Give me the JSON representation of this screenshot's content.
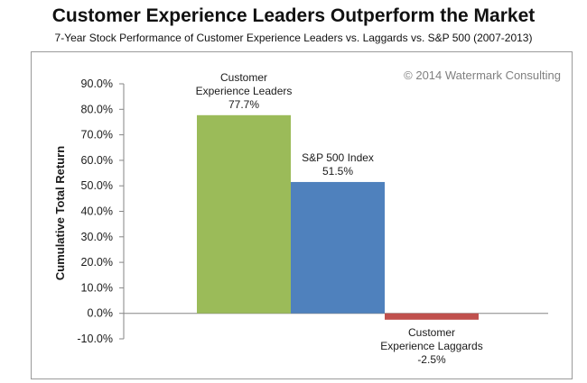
{
  "chart_data": {
    "type": "bar",
    "title": "Customer Experience Leaders Outperform the Market",
    "subtitle": "7-Year Stock Performance of Customer Experience Leaders vs. Laggards vs. S&P 500 (2007-2013)",
    "ylabel": "Cumulative Total Return",
    "xlabel": "",
    "ylim": [
      -10,
      90
    ],
    "yticks": [
      -10,
      0,
      10,
      20,
      30,
      40,
      50,
      60,
      70,
      80,
      90
    ],
    "ytick_labels": [
      "-10.0%",
      "0.0%",
      "10.0%",
      "20.0%",
      "30.0%",
      "40.0%",
      "50.0%",
      "60.0%",
      "70.0%",
      "80.0%",
      "90.0%"
    ],
    "categories": [
      "Customer Experience Leaders",
      "S&P 500 Index",
      "Customer Experience Laggards"
    ],
    "values": [
      77.7,
      51.5,
      -2.5
    ],
    "label_lines": [
      [
        "Customer",
        "Experience Leaders"
      ],
      [
        "S&P 500 Index"
      ],
      [
        "Customer",
        "Experience Laggards"
      ]
    ],
    "value_labels": [
      "77.7%",
      "51.5%",
      "-2.5%"
    ],
    "colors": [
      "#9bbb59",
      "#4f81bd",
      "#c0504d"
    ],
    "grid": false,
    "legend": "none",
    "annotation": "© 2014 Watermark Consulting"
  }
}
